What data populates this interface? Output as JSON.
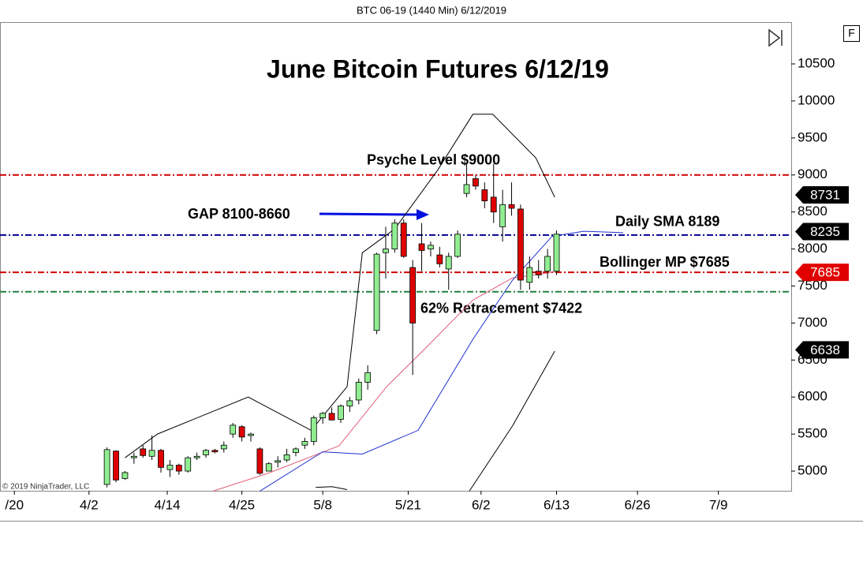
{
  "chart_data": {
    "type": "candlestick",
    "header": "BTC 06-19 (1440 Min)  6/12/2019",
    "title": "June Bitcoin Futures 6/12/19",
    "copyright": "© 2019 NinjaTrader, LLC",
    "button": "F",
    "arrow_label": "GAP 8100-8660",
    "ylim": [
      4734,
      11065
    ],
    "yticks": [
      5000,
      5500,
      6000,
      6500,
      7000,
      7500,
      8000,
      8500,
      9000,
      9500,
      10000,
      10500
    ],
    "xlim": [
      -9.9,
      78.1
    ],
    "xticks": [
      {
        "value": -8.3,
        "label": "/20"
      },
      {
        "value": 0,
        "label": "4/2"
      },
      {
        "value": 8.7,
        "label": "4/14"
      },
      {
        "value": 17,
        "label": "4/25"
      },
      {
        "value": 26,
        "label": "5/8"
      },
      {
        "value": 35.5,
        "label": "5/21"
      },
      {
        "value": 43.6,
        "label": "6/2"
      },
      {
        "value": 52,
        "label": "6/13"
      },
      {
        "value": 61,
        "label": "6/26"
      },
      {
        "value": 70,
        "label": "7/9"
      }
    ],
    "up_color": "#90ee90",
    "down_color": "#e00000",
    "candles": {
      "x": [
        2,
        3,
        4,
        5,
        6,
        7,
        8,
        9,
        10,
        11,
        12,
        13,
        14,
        15,
        16,
        17,
        18,
        19,
        20,
        21,
        22,
        23,
        24,
        25,
        26,
        27,
        28,
        29,
        30,
        31,
        32,
        33,
        34,
        35,
        36,
        37,
        38,
        39,
        40,
        41,
        42,
        43,
        44,
        45,
        46,
        47,
        48,
        49,
        50,
        51,
        52
      ],
      "open": [
        4820,
        5270,
        4900,
        5180,
        5300,
        5200,
        5280,
        5020,
        5080,
        5000,
        5180,
        5220,
        5280,
        5300,
        5500,
        5600,
        5480,
        5300,
        5000,
        5120,
        5150,
        5250,
        5350,
        5400,
        5720,
        5780,
        5700,
        5880,
        5960,
        6200,
        6900,
        7950,
        8000,
        8350,
        7750,
        8070,
        8000,
        7920,
        7730,
        7900,
        8750,
        8950,
        8800,
        8700,
        8300,
        8600,
        8540,
        7550,
        7700,
        7700,
        7700
      ],
      "high": [
        5320,
        5280,
        5000,
        5250,
        5350,
        5480,
        5300,
        5150,
        5100,
        5200,
        5250,
        5300,
        5300,
        5400,
        5650,
        5620,
        5520,
        5320,
        5120,
        5200,
        5300,
        5320,
        5450,
        5750,
        5800,
        5860,
        5900,
        6000,
        6250,
        6430,
        7950,
        8300,
        8400,
        8400,
        7850,
        8350,
        8100,
        8030,
        7950,
        8250,
        9150,
        9000,
        8900,
        9150,
        8800,
        8900,
        8600,
        7900,
        7850,
        8000,
        8250
      ],
      "low": [
        4780,
        4850,
        4880,
        5100,
        5180,
        5150,
        4980,
        4920,
        4950,
        4980,
        5150,
        5180,
        5240,
        5250,
        5450,
        5400,
        5400,
        4950,
        5000,
        5050,
        5120,
        5200,
        5300,
        5350,
        5640,
        5700,
        5650,
        5800,
        5900,
        6100,
        6850,
        7600,
        7950,
        7880,
        6300,
        7700,
        7900,
        7750,
        7450,
        7880,
        8700,
        8800,
        8550,
        8350,
        8100,
        8450,
        7450,
        7450,
        7600,
        7600,
        7650
      ],
      "close": [
        5290,
        4880,
        4980,
        5200,
        5210,
        5280,
        5050,
        5080,
        5000,
        5180,
        5200,
        5280,
        5260,
        5350,
        5620,
        5460,
        5500,
        4970,
        5100,
        5140,
        5220,
        5300,
        5400,
        5720,
        5780,
        5690,
        5880,
        5950,
        6200,
        6330,
        7930,
        8000,
        8350,
        7900,
        7000,
        7980,
        8050,
        7800,
        7900,
        8200,
        8870,
        8850,
        8650,
        8500,
        8600,
        8550,
        7580,
        7750,
        7650,
        7900,
        8200
      ]
    },
    "lines": [
      {
        "color": "#000000",
        "x": [
          4,
          7.6,
          17.7,
          24.7,
          28.7,
          30.4,
          34,
          38.8,
          42.7,
          44.9,
          49.7,
          51.8
        ],
        "values": [
          5180,
          5500,
          6000,
          5550,
          6140,
          7950,
          8270,
          9070,
          9820,
          9820,
          9230,
          8700
        ]
      },
      {
        "color": "#e0607a",
        "x": [
          13.8,
          19.9,
          27.8,
          33.1,
          37.5,
          42.7,
          47.1,
          51.8
        ],
        "values": [
          4730,
          4970,
          5340,
          6140,
          6670,
          7310,
          7610,
          7690
        ]
      },
      {
        "color": "#000000",
        "x": [
          25.2,
          27,
          28.7
        ],
        "values": [
          4780,
          4790,
          4750
        ]
      },
      {
        "color": "#000000",
        "x": [
          42.3,
          47.1,
          51.8
        ],
        "values": [
          4730,
          5610,
          6620
        ]
      },
      {
        "color": "#2030d0",
        "x": [
          19,
          26,
          30.4,
          36.6,
          42.7,
          47.1,
          51.5,
          55,
          59.4
        ],
        "values": [
          4730,
          5260,
          5230,
          5550,
          6780,
          7580,
          8170,
          8240,
          8220
        ]
      }
    ],
    "levels": [
      {
        "label": "Psyche Level $9000",
        "value": 9000,
        "color": "#d00000"
      },
      {
        "label": "Daily SMA 8189",
        "value": 8189,
        "color": "#000090"
      },
      {
        "label": "Bollinger MP $7685",
        "value": 7685,
        "color": "#d00000"
      },
      {
        "label": "62% Retracement $7422",
        "value": 7422,
        "color": "#208040"
      }
    ],
    "flags": [
      {
        "value": 8731,
        "color": "#000000"
      },
      {
        "value": 8235,
        "color": "#000000"
      },
      {
        "value": 7685,
        "color": "#e00000"
      },
      {
        "value": 6638,
        "color": "#000000"
      }
    ]
  }
}
